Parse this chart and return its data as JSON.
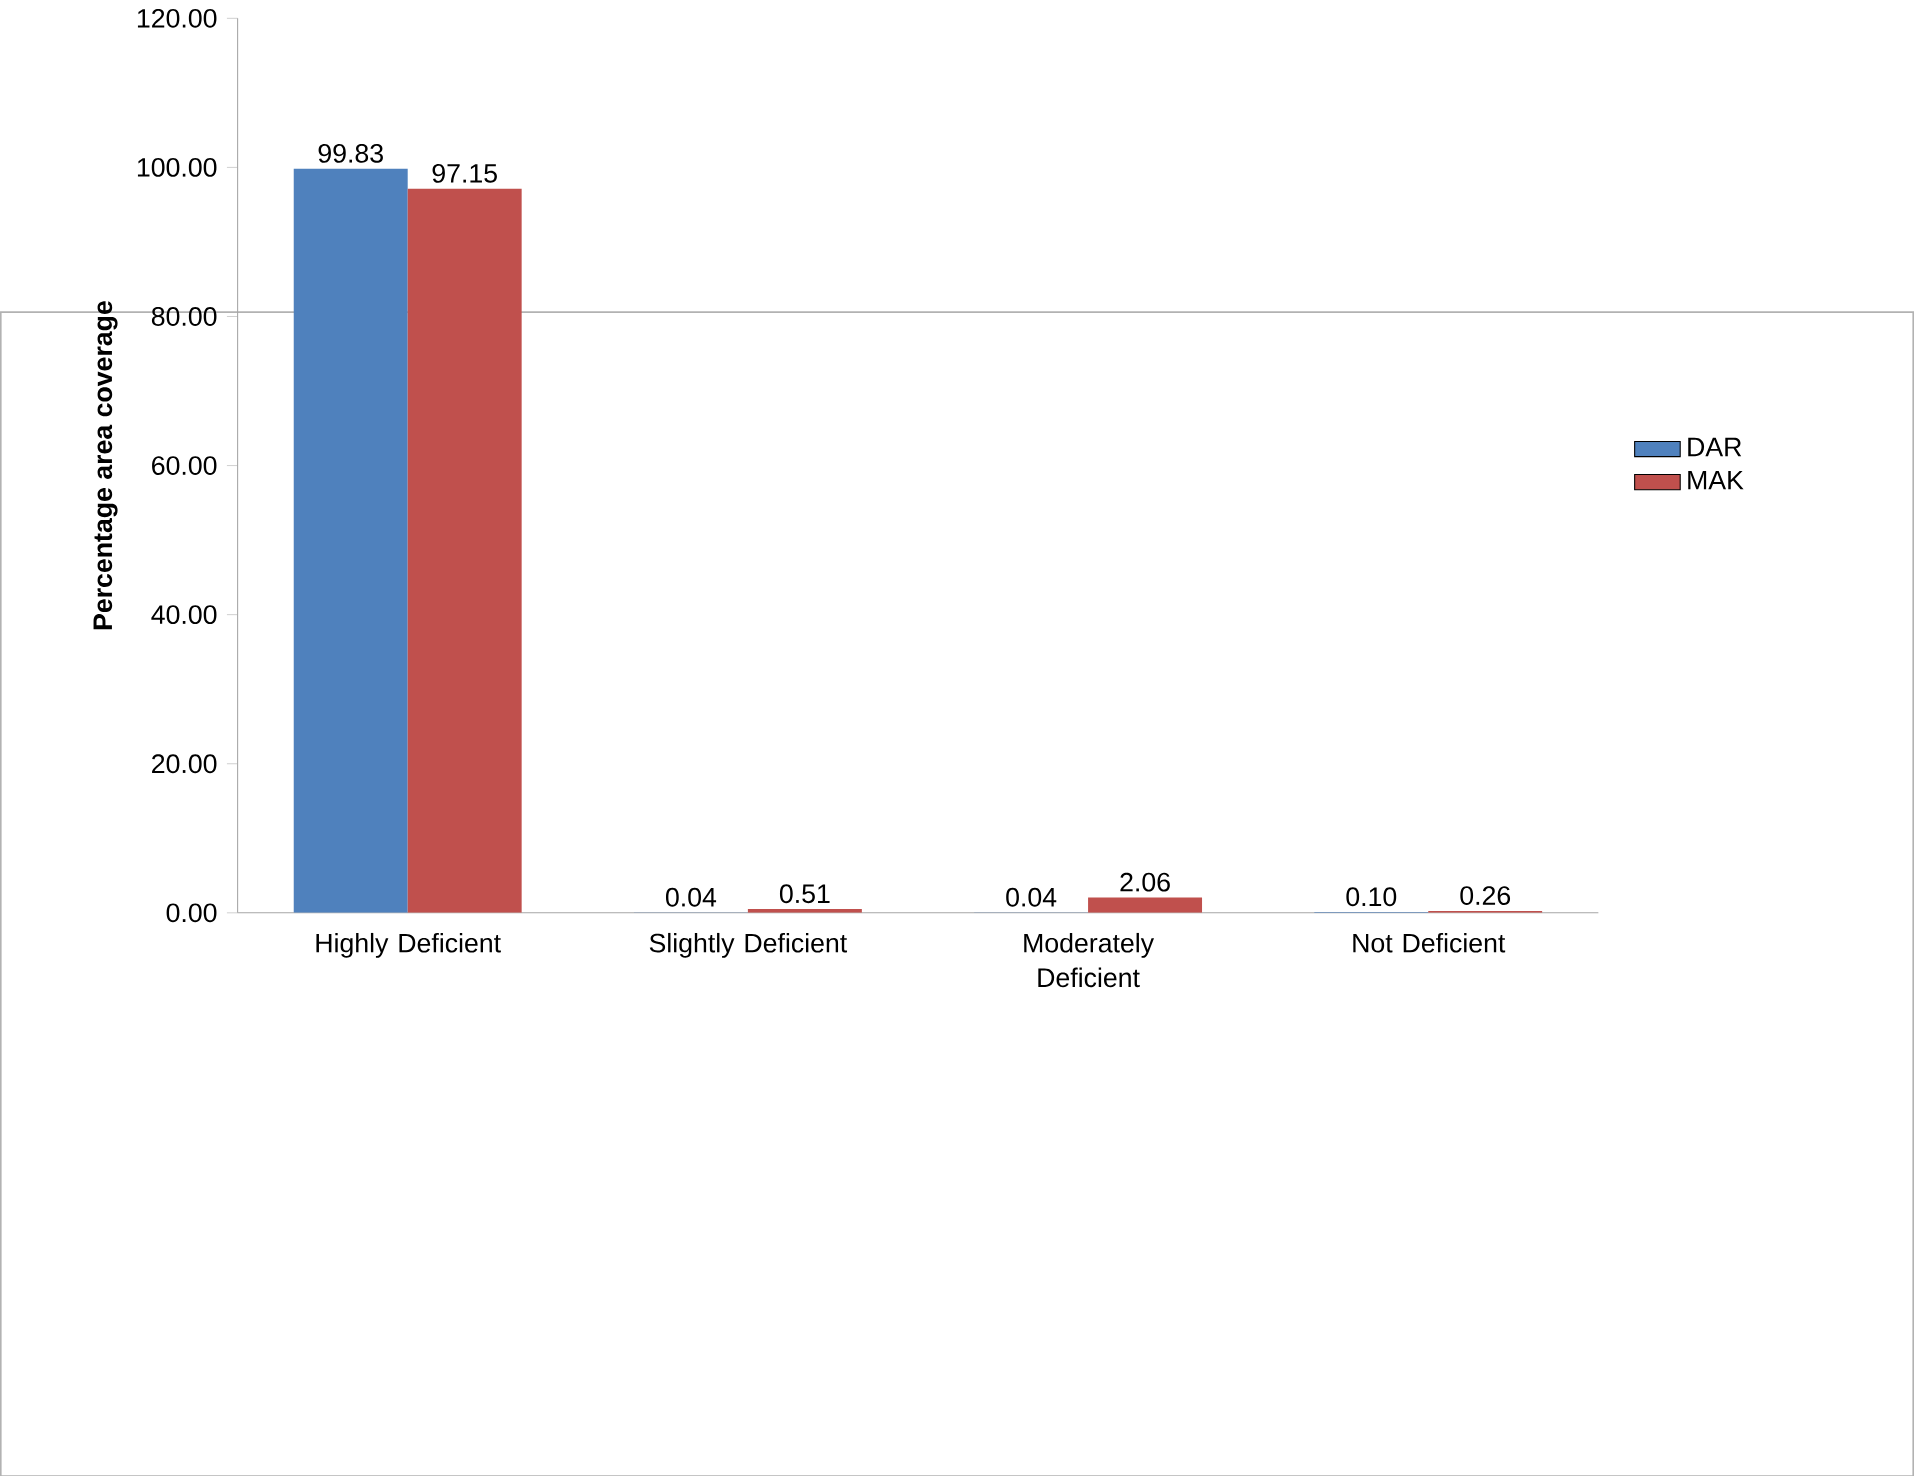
{
  "chart_data": {
    "type": "bar",
    "ylabel": "Percentage area coverage",
    "categories": [
      "Highly Deficient",
      "Slightly Deficient",
      "Moderately Deficient",
      "Not Deficient"
    ],
    "series": [
      {
        "name": "DAR",
        "color": "#4f81bd",
        "values": [
          99.83,
          0.04,
          0.04,
          0.1
        ],
        "value_labels": [
          "99.83",
          "0.04",
          "0.04",
          "0.10"
        ]
      },
      {
        "name": "MAK",
        "color": "#c0504d",
        "values": [
          97.15,
          0.51,
          2.06,
          0.26
        ],
        "value_labels": [
          "97.15",
          "0.51",
          "2.06",
          "0.26"
        ]
      }
    ],
    "ylim": [
      0,
      120
    ],
    "yticks": [
      {
        "value": 0,
        "label": "0.00"
      },
      {
        "value": 20,
        "label": "20.00"
      },
      {
        "value": 40,
        "label": "40.00"
      },
      {
        "value": 60,
        "label": "60.00"
      },
      {
        "value": 80,
        "label": "80.00"
      },
      {
        "value": 100,
        "label": "100.00"
      },
      {
        "value": 120,
        "label": "120.00"
      }
    ],
    "grid": false,
    "legend": "right"
  }
}
